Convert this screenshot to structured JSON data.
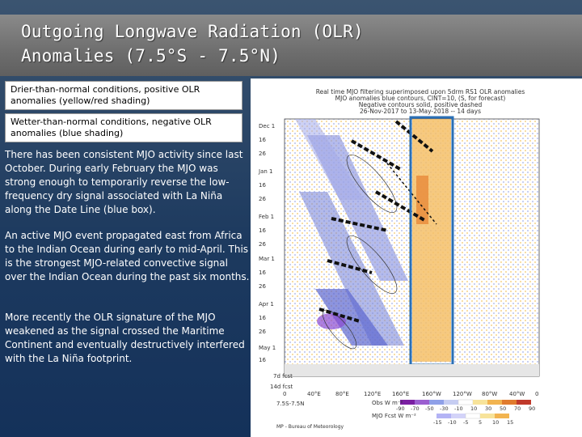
{
  "slide": {
    "title_line1": "Outgoing Longwave Radiation (OLR)",
    "title_line2": "Anomalies (7.5°S - 7.5°N)",
    "legend_dry": "Drier-than-normal conditions, positive OLR anomalies (yellow/red shading)",
    "legend_wet": "Wetter-than-normal conditions, negative OLR anomalies (blue shading)",
    "paragraph1": "There has been consistent MJO activity since last October. During early February the MJO was strong enough to temporarily reverse the low-frequency dry signal associated with La Niña along the Date Line (blue box).",
    "paragraph2": "An active MJO event propagated east from Africa to the Indian Ocean during early to mid-April. This is the strongest MJO-related convective signal over the Indian Ocean during the past six months.",
    "paragraph3": "More recently the OLR signature of the MJO weakened as the signal crossed the Maritime Continent and eventually destructively interfered with the La Niña footprint."
  },
  "figure": {
    "title_lines": [
      "Real time MJO filtering superimposed upon 5drm RS1 OLR anomalies",
      "MJO anomalies blue contours, CINT=10, (S, for forecast)",
      "Negative contours solid, positive dashed",
      "26-Nov-2017 to 13-May-2018 -- 14 days"
    ],
    "y_labels": [
      "Dec 1",
      "16",
      "26",
      "Jan 1",
      "16",
      "26",
      "Feb 1",
      "16",
      "26",
      "Mar 1",
      "16",
      "26",
      "Apr 1",
      "16",
      "26",
      "May 1",
      "16",
      "7d fcst",
      "14d fcst"
    ],
    "x_labels": [
      "0",
      "40°E",
      "80°E",
      "120°E",
      "160°E",
      "160°W",
      "120°W",
      "80°W",
      "40°W",
      "0"
    ],
    "lat_label": "7.5S-7.5N",
    "footer": "MP - Bureau of Meteorology",
    "olr_unit": "Obs W m⁻²",
    "mjo_unit": "MJO Fcst W m⁻²",
    "olr_ticks": [
      "-90",
      "-70",
      "-50",
      "-30",
      "-10",
      "10",
      "30",
      "50",
      "70",
      "90"
    ],
    "mjo_ticks": [
      "-15",
      "-10",
      "-5",
      "5",
      "10",
      "15"
    ],
    "colors": {
      "blue_box": "#2a6fb5",
      "dry": "#f2b450",
      "wet": "#6e7fd6"
    }
  }
}
